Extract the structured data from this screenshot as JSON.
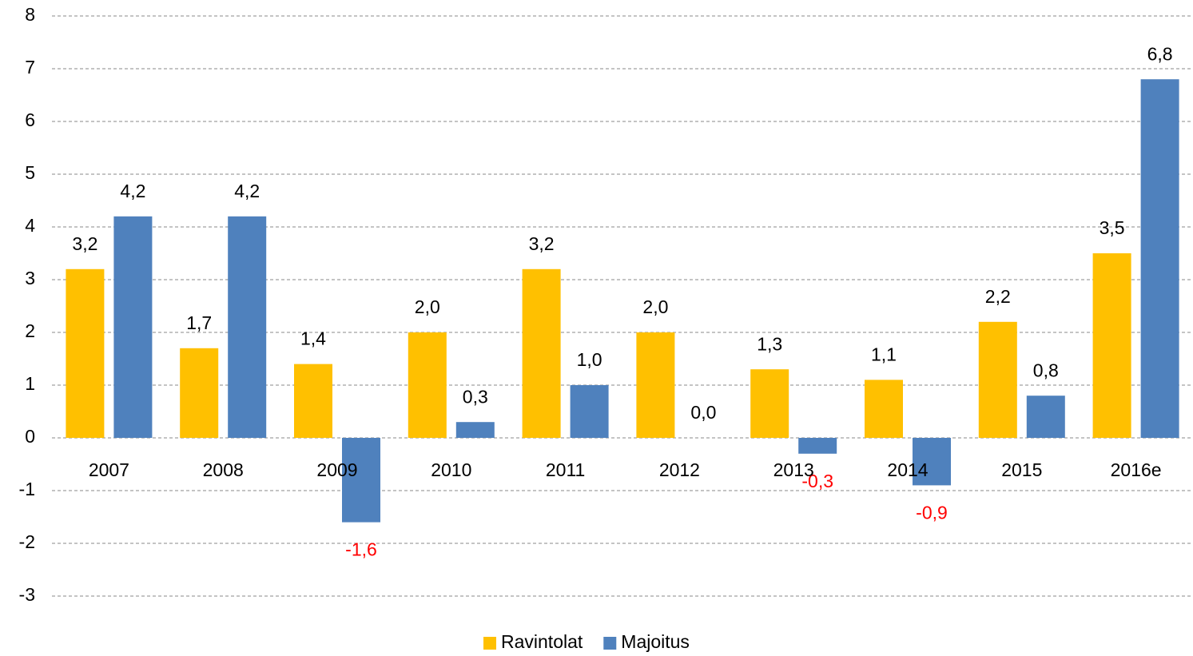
{
  "chart_data": {
    "type": "bar",
    "categories": [
      "2007",
      "2008",
      "2009",
      "2010",
      "2011",
      "2012",
      "2013",
      "2014",
      "2015",
      "2016e"
    ],
    "series": [
      {
        "name": "Ravintolat",
        "color": "#FFC000",
        "values": [
          3.2,
          1.7,
          1.4,
          2.0,
          3.2,
          2.0,
          1.3,
          1.1,
          2.2,
          3.5
        ],
        "value_labels": [
          "3,2",
          "1,7",
          "1,4",
          "2,0",
          "3,2",
          "2,0",
          "1,3",
          "1,1",
          "2,2",
          "3,5"
        ]
      },
      {
        "name": "Majoitus",
        "color": "#4F81BD",
        "values": [
          4.2,
          4.2,
          -1.6,
          0.3,
          1.0,
          0.0,
          -0.3,
          -0.9,
          0.8,
          6.8
        ],
        "value_labels": [
          "4,2",
          "4,2",
          "-1,6",
          "0,3",
          "1,0",
          "0,0",
          "-0,3",
          "-0,9",
          "0,8",
          "6,8"
        ]
      }
    ],
    "ylim": [
      -3,
      8
    ],
    "yticks": [
      -3,
      -2,
      -1,
      0,
      1,
      2,
      3,
      4,
      5,
      6,
      7,
      8
    ],
    "grid": true,
    "legend": "bottom",
    "negative_label_color": "#FF0000"
  }
}
